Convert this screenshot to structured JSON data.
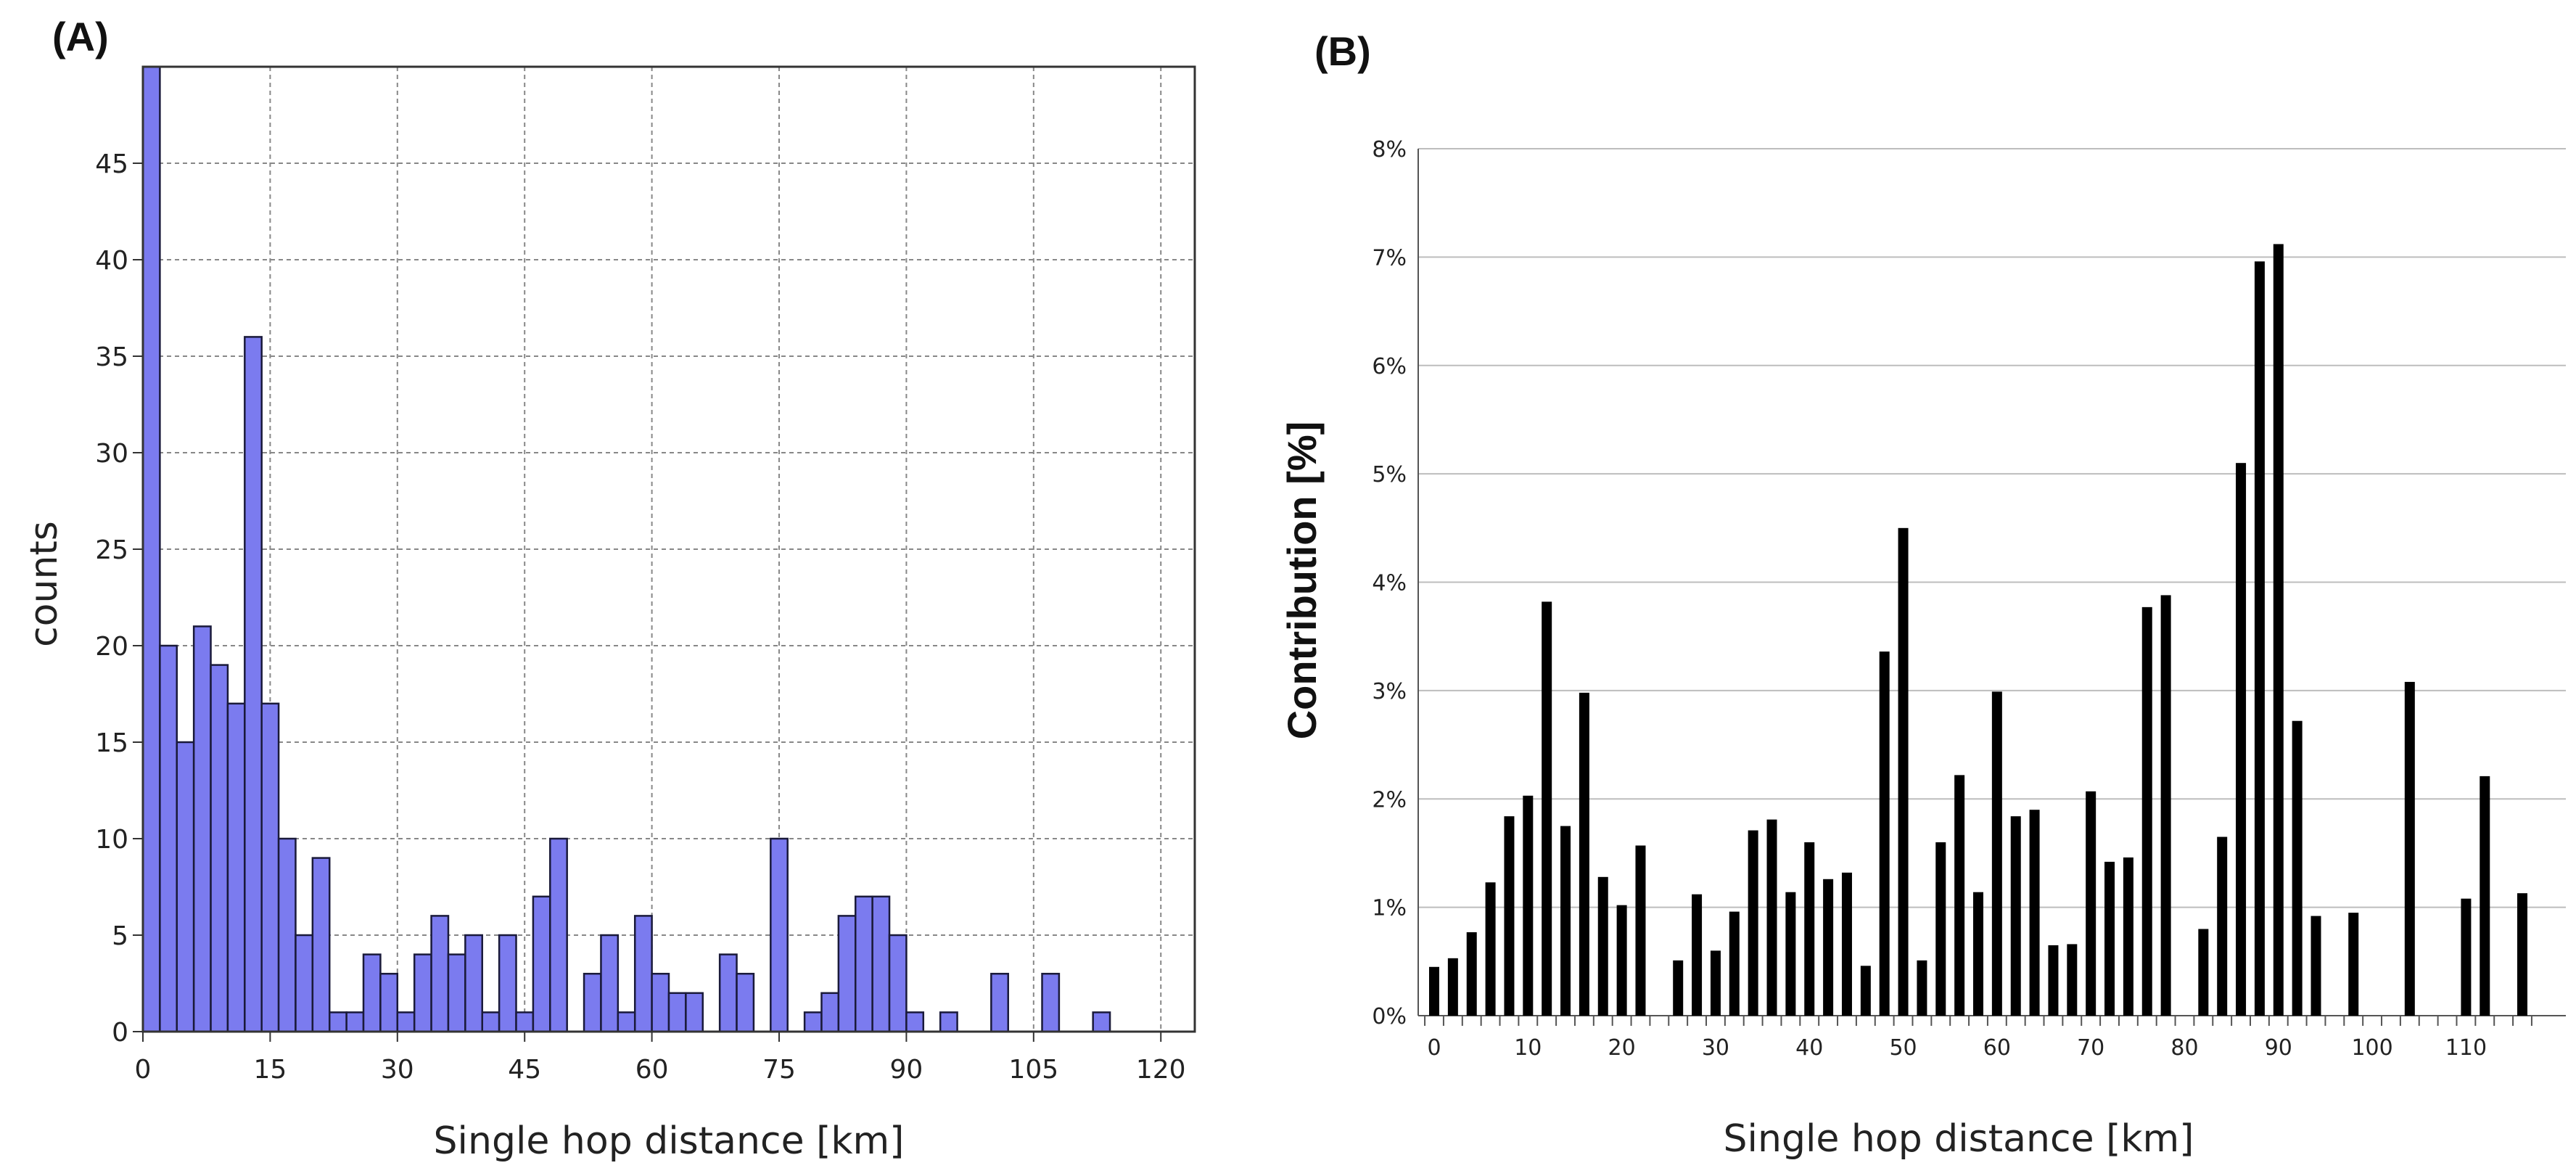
{
  "colors": {
    "hist_fill": "#7b7bef",
    "hist_edge": "#1a1a3a",
    "bar_b": "#000000",
    "grid_a": "#888888",
    "grid_b": "#bdbdbd"
  },
  "chart_data": [
    {
      "type": "bar",
      "panel_label": "(A)",
      "title": "",
      "xlabel": "Single hop distance [km]",
      "ylabel": "counts",
      "bin_width": 2,
      "xlim": [
        0,
        124
      ],
      "ylim": [
        0,
        50
      ],
      "x_ticks": [
        "0",
        "15",
        "30",
        "45",
        "60",
        "75",
        "90",
        "105",
        "120"
      ],
      "x_tick_values": [
        0,
        15,
        30,
        45,
        60,
        75,
        90,
        105,
        120
      ],
      "y_ticks": [
        "0",
        "5",
        "10",
        "15",
        "20",
        "25",
        "30",
        "35",
        "40",
        "45"
      ],
      "y_tick_values": [
        0,
        5,
        10,
        15,
        20,
        25,
        30,
        35,
        40,
        45
      ],
      "grid": true,
      "series": [
        {
          "name": "counts",
          "bin_starts": [
            0,
            2,
            4,
            6,
            8,
            10,
            12,
            14,
            16,
            18,
            20,
            22,
            24,
            26,
            28,
            30,
            32,
            34,
            36,
            38,
            40,
            42,
            44,
            46,
            48,
            50,
            52,
            54,
            56,
            58,
            60,
            62,
            64,
            66,
            68,
            70,
            72,
            74,
            76,
            78,
            80,
            82,
            84,
            86,
            88,
            90,
            92,
            94,
            96,
            98,
            100,
            102,
            104,
            106,
            108,
            110,
            112,
            114,
            116,
            118
          ],
          "values": [
            50,
            20,
            15,
            21,
            19,
            17,
            36,
            17,
            10,
            5,
            9,
            1,
            1,
            4,
            3,
            1,
            4,
            6,
            4,
            5,
            1,
            5,
            1,
            7,
            10,
            0,
            3,
            5,
            1,
            6,
            3,
            2,
            2,
            0,
            4,
            3,
            0,
            10,
            0,
            1,
            2,
            6,
            7,
            7,
            5,
            1,
            0,
            1,
            0,
            0,
            3,
            0,
            0,
            3,
            0,
            0,
            1,
            0,
            0,
            0
          ]
        }
      ]
    },
    {
      "type": "bar",
      "panel_label": "(B)",
      "title": "",
      "xlabel": "Single hop distance [km]",
      "ylabel": "Contribution [%]",
      "xlim": [
        -1,
        119
      ],
      "ylim": [
        0,
        8
      ],
      "x_ticks": [
        "0",
        "10",
        "20",
        "30",
        "40",
        "50",
        "60",
        "70",
        "80",
        "90",
        "100",
        "110"
      ],
      "x_tick_values": [
        0,
        10,
        20,
        30,
        40,
        50,
        60,
        70,
        80,
        90,
        100,
        110
      ],
      "y_ticks": [
        "0%",
        "1%",
        "2%",
        "3%",
        "4%",
        "5%",
        "6%",
        "7%",
        "8%"
      ],
      "y_tick_values": [
        0,
        1,
        2,
        3,
        4,
        5,
        6,
        7,
        8
      ],
      "grid": true,
      "series": [
        {
          "name": "Contribution",
          "x": [
            0,
            2,
            4,
            6,
            8,
            10,
            12,
            14,
            16,
            18,
            20,
            22,
            24,
            26,
            28,
            30,
            32,
            34,
            36,
            38,
            40,
            42,
            44,
            46,
            48,
            50,
            52,
            54,
            56,
            58,
            60,
            62,
            64,
            66,
            68,
            70,
            72,
            74,
            76,
            78,
            80,
            82,
            84,
            86,
            88,
            90,
            92,
            94,
            96,
            98,
            100,
            102,
            104,
            106,
            108,
            110,
            112,
            114,
            116
          ],
          "values": [
            0.45,
            0.53,
            0.77,
            1.23,
            1.84,
            2.03,
            3.82,
            1.75,
            2.98,
            1.28,
            1.02,
            1.57,
            0,
            0.51,
            1.12,
            0.6,
            0.96,
            1.71,
            1.81,
            1.14,
            1.6,
            1.26,
            1.32,
            0.46,
            3.36,
            4.5,
            0.51,
            1.6,
            2.22,
            1.14,
            2.99,
            1.84,
            1.9,
            0.65,
            0.66,
            2.07,
            1.42,
            1.46,
            3.77,
            3.88,
            0,
            0.8,
            1.65,
            5.1,
            6.96,
            7.12,
            2.72,
            0.92,
            0,
            0.95,
            0,
            0,
            3.08,
            0,
            0,
            1.08,
            2.21,
            0,
            1.13
          ]
        }
      ]
    }
  ]
}
